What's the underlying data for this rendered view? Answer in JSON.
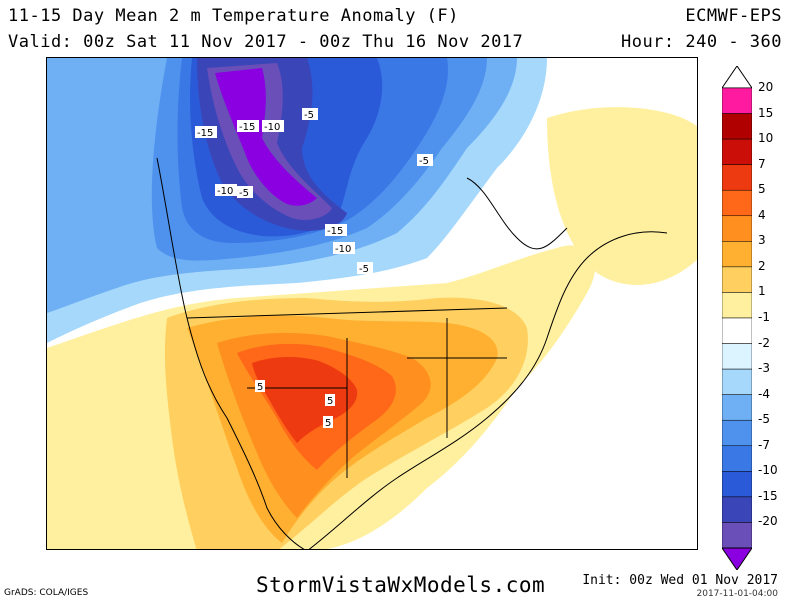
{
  "header": {
    "title": "11-15 Day Mean 2 m Temperature Anomaly (F)",
    "valid": "Valid: 00z Sat 11 Nov 2017 - 00z Thu 16 Nov 2017",
    "model": "ECMWF-EPS",
    "hour": "Hour: 240 - 360"
  },
  "colors": {
    "c_m20": "#8a00e0",
    "c_m15": "#6a4fb8",
    "c_m10": "#3a45b8",
    "c_m7": "#2a5ad8",
    "c_m5": "#3a78e6",
    "c_m4": "#4f92ee",
    "c_m3": "#6fb0f4",
    "c_m2": "#a6d8fb",
    "c_m1": "#dcf4ff",
    "c_0": "#ffffff",
    "c_p1": "#fff0a0",
    "c_p2": "#ffd060",
    "c_p3": "#ffb030",
    "c_p4": "#ff9020",
    "c_p5": "#ff6818",
    "c_p7": "#ee3a10",
    "c_p10": "#cc0e08",
    "c_p15": "#b00000",
    "c_p20": "#ff1aa0"
  },
  "legend": {
    "ticks": [
      "20",
      "15",
      "10",
      "7",
      "5",
      "4",
      "3",
      "2",
      "1",
      "-1",
      "-2",
      "-3",
      "-4",
      "-5",
      "-7",
      "-10",
      "-15",
      "-20"
    ]
  },
  "contour_labels": [
    {
      "text": "-15"
    },
    {
      "text": "-15"
    },
    {
      "text": "-10"
    },
    {
      "text": "-5"
    },
    {
      "text": "-10"
    },
    {
      "text": "-5"
    },
    {
      "text": "-5"
    },
    {
      "text": "-15"
    },
    {
      "text": "-10"
    },
    {
      "text": "-5"
    },
    {
      "text": "5"
    },
    {
      "text": "5"
    },
    {
      "text": "5"
    }
  ],
  "footer": {
    "url": "StormVistaWxModels.com",
    "credit": "GrADS: COLA/IGES",
    "init": "Init: 00z Wed 01 Nov 2017",
    "stamp": "2017-11-01-04:00"
  }
}
